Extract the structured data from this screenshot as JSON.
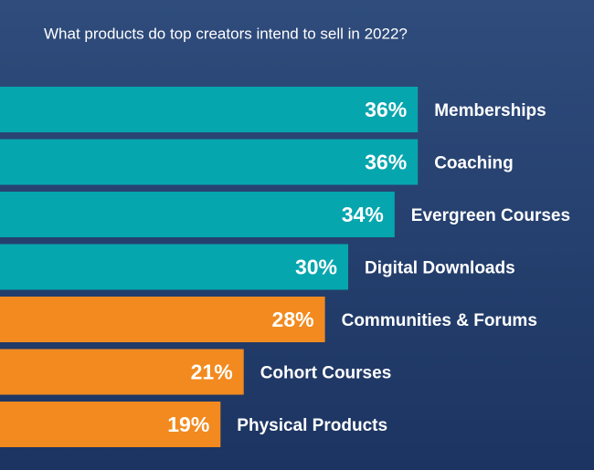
{
  "chart_data": {
    "type": "bar",
    "orientation": "horizontal",
    "title": "What products do top creators intend to sell in 2022?",
    "categories": [
      "Memberships",
      "Coaching",
      "Evergreen Courses",
      "Digital Downloads",
      "Communities & Forums",
      "Cohort Courses",
      "Physical Products"
    ],
    "values": [
      36,
      36,
      34,
      30,
      28,
      21,
      19
    ],
    "value_labels": [
      "36%",
      "36%",
      "34%",
      "30%",
      "28%",
      "21%",
      "19%"
    ],
    "colors": [
      "#06a6ae",
      "#06a6ae",
      "#06a6ae",
      "#06a6ae",
      "#f28a1f",
      "#f28a1f",
      "#f28a1f"
    ]
  }
}
